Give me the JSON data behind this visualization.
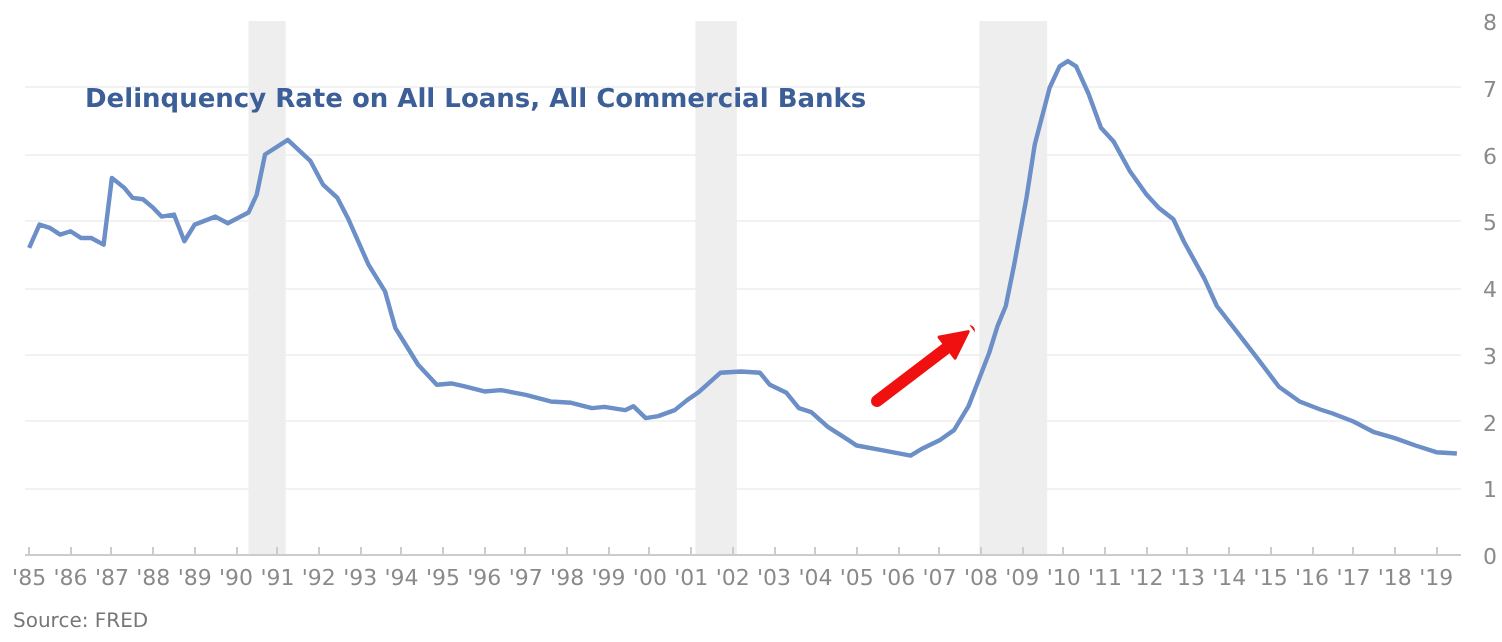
{
  "chart_data": {
    "type": "line",
    "title": "Delinquency Rate on All Loans, All Commercial Banks",
    "annotations": [
      "Source: FRED"
    ],
    "x": [
      1985.0,
      1985.25,
      1985.5,
      1985.75,
      1986.0,
      1986.25,
      1986.5,
      1986.8,
      1987.0,
      1987.3,
      1987.5,
      1987.75,
      1988.0,
      1988.2,
      1988.5,
      1988.75,
      1989.0,
      1989.5,
      1989.8,
      1990.3,
      1990.5,
      1990.7,
      1991.25,
      1991.8,
      1992.1,
      1992.45,
      1992.7,
      1993.2,
      1993.6,
      1993.85,
      1994.1,
      1994.4,
      1994.85,
      1995.2,
      1995.5,
      1996.0,
      1996.4,
      1997.0,
      1997.6,
      1998.1,
      1998.6,
      1998.9,
      1999.4,
      1999.6,
      1999.9,
      2000.2,
      2000.6,
      2000.9,
      2001.2,
      2001.7,
      2002.2,
      2002.66,
      2002.9,
      2003.3,
      2003.6,
      2003.9,
      2004.3,
      2004.8,
      2005.0,
      2005.6,
      2006.3,
      2006.6,
      2007.0,
      2007.35,
      2007.7,
      2007.95,
      2008.2,
      2008.4,
      2008.6,
      2008.8,
      2009.1,
      2009.3,
      2009.66,
      2009.9,
      2010.1,
      2010.3,
      2010.6,
      2010.9,
      2011.2,
      2011.6,
      2012.0,
      2012.3,
      2012.65,
      2012.9,
      2013.4,
      2013.7,
      2014.2,
      2014.7,
      2015.2,
      2015.7,
      2016.2,
      2016.5,
      2017.0,
      2017.5,
      2018.0,
      2018.5,
      2019.0,
      2019.5
    ],
    "series": [
      {
        "color": "#6b8fc6",
        "values": [
          4.6,
          4.95,
          4.9,
          4.8,
          4.85,
          4.75,
          4.75,
          4.65,
          5.65,
          5.5,
          5.35,
          5.33,
          5.2,
          5.07,
          5.1,
          4.7,
          4.95,
          5.07,
          4.97,
          5.13,
          5.4,
          6.0,
          6.22,
          5.9,
          5.55,
          5.35,
          5.05,
          4.35,
          3.95,
          3.4,
          3.15,
          2.85,
          2.55,
          2.57,
          2.53,
          2.45,
          2.47,
          2.4,
          2.3,
          2.28,
          2.2,
          2.22,
          2.17,
          2.23,
          2.05,
          2.08,
          2.17,
          2.32,
          2.45,
          2.73,
          2.75,
          2.73,
          2.55,
          2.43,
          2.2,
          2.14,
          1.92,
          1.72,
          1.64,
          1.57,
          1.49,
          1.6,
          1.72,
          1.87,
          2.23,
          2.63,
          3.03,
          3.43,
          3.73,
          4.34,
          5.35,
          6.15,
          7.0,
          7.32,
          7.4,
          7.32,
          6.91,
          6.4,
          6.2,
          5.75,
          5.4,
          5.2,
          5.03,
          4.7,
          4.14,
          3.73,
          3.33,
          2.93,
          2.52,
          2.3,
          2.18,
          2.12,
          2.0,
          1.84,
          1.75,
          1.64,
          1.54,
          1.52
        ]
      }
    ],
    "xlim": [
      1984.9,
      2019.6
    ],
    "ylim": [
      0,
      8
    ],
    "xticks": [
      {
        "value": 1985,
        "label": "'85"
      },
      {
        "value": 1986,
        "label": "'86"
      },
      {
        "value": 1987,
        "label": "'87"
      },
      {
        "value": 1988,
        "label": "'88"
      },
      {
        "value": 1989,
        "label": "'89"
      },
      {
        "value": 1990,
        "label": "'90"
      },
      {
        "value": 1991,
        "label": "'91"
      },
      {
        "value": 1992,
        "label": "'92"
      },
      {
        "value": 1993,
        "label": "'93"
      },
      {
        "value": 1994,
        "label": "'94"
      },
      {
        "value": 1995,
        "label": "'95"
      },
      {
        "value": 1996,
        "label": "'96"
      },
      {
        "value": 1997,
        "label": "'97"
      },
      {
        "value": 1998,
        "label": "'98"
      },
      {
        "value": 1999,
        "label": "'99"
      },
      {
        "value": 2000,
        "label": "'00"
      },
      {
        "value": 2001,
        "label": "'01"
      },
      {
        "value": 2002,
        "label": "'02"
      },
      {
        "value": 2003,
        "label": "'03"
      },
      {
        "value": 2004,
        "label": "'04"
      },
      {
        "value": 2005,
        "label": "'05"
      },
      {
        "value": 2006,
        "label": "'06"
      },
      {
        "value": 2007,
        "label": "'07"
      },
      {
        "value": 2008,
        "label": "'08"
      },
      {
        "value": 2009,
        "label": "'09"
      },
      {
        "value": 2010,
        "label": "'10"
      },
      {
        "value": 2011,
        "label": "'11"
      },
      {
        "value": 2012,
        "label": "'12"
      },
      {
        "value": 2013,
        "label": "'13"
      },
      {
        "value": 2014,
        "label": "'14"
      },
      {
        "value": 2015,
        "label": "'15"
      },
      {
        "value": 2016,
        "label": "'16"
      },
      {
        "value": 2017,
        "label": "'17"
      },
      {
        "value": 2018,
        "label": "'18"
      },
      {
        "value": 2019,
        "label": "'19"
      }
    ],
    "yticks": [
      0,
      1,
      2,
      3,
      4,
      5,
      6,
      7,
      8
    ],
    "bands": [
      {
        "axis": "x",
        "from": 1990.3,
        "to": 1991.2,
        "color": "#eeeeee"
      },
      {
        "axis": "x",
        "from": 2001.1,
        "to": 2002.1,
        "color": "#eeeeee"
      },
      {
        "axis": "x",
        "from": 2007.96,
        "to": 2009.6,
        "color": "#eeeeee"
      }
    ],
    "grid": "y",
    "line_style": "solid"
  }
}
